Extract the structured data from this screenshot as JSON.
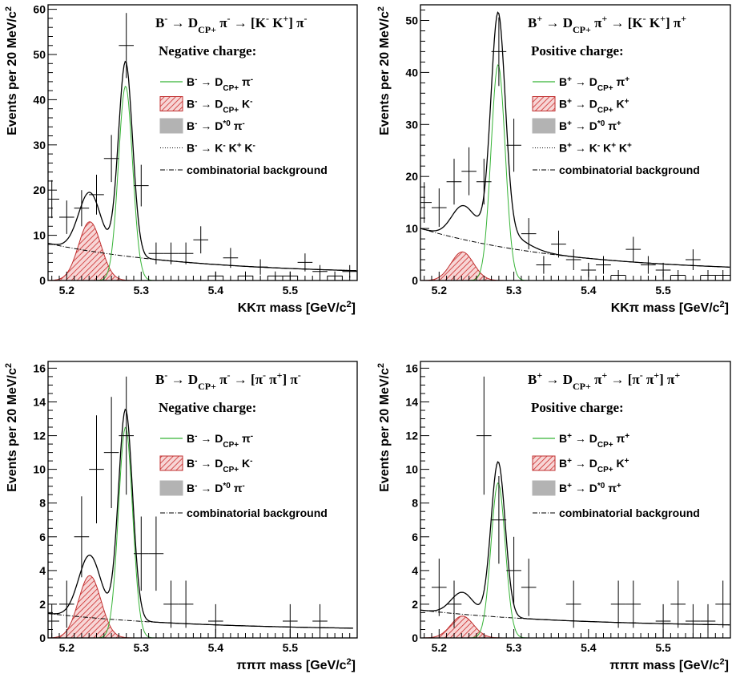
{
  "chart_data": [
    {
      "type": "histogram-fit",
      "title": "B⁻ → D_CP+ π⁻ → [K⁻ K⁺] π⁻",
      "title_parts": {
        "a": "B",
        "a_sup": "-",
        "b": " → D",
        "b_sub": "CP+",
        "c": " π",
        "c_sup": "-",
        "d": " → [K",
        "d_sup": "-",
        "e": " K",
        "e_sup": "+",
        "f": "] π",
        "f_sup": "-"
      },
      "subtitle": "Negative charge:",
      "xlabel": "KKπ mass [GeV/c²]",
      "xlabel_parts": {
        "main": "KKπ mass [GeV/c",
        "sup": "2",
        "end": "]"
      },
      "ylabel": "Events per 20 MeV/c²",
      "ylabel_parts": {
        "main": "Events per 20 MeV/c",
        "sup": "2"
      },
      "xlim": [
        5.175,
        5.59
      ],
      "ylim": [
        0,
        61
      ],
      "xticks": [
        "5.2",
        "5.3",
        "5.4",
        "5.5"
      ],
      "yticks": [
        "0",
        "10",
        "20",
        "30",
        "40",
        "50",
        "60"
      ],
      "legend": [
        {
          "style": "green-line",
          "parts": {
            "a": "B",
            "a_sup": "-",
            "b": " → D",
            "b_sub": "CP+",
            "c": " π",
            "c_sup": "-"
          }
        },
        {
          "style": "red-hatch",
          "parts": {
            "a": "B",
            "a_sup": "-",
            "b": " → D",
            "b_sub": "CP+",
            "c": " K",
            "c_sup": "-"
          }
        },
        {
          "style": "grey-fill",
          "parts": {
            "a": "B",
            "a_sup": "-",
            "b": " → D",
            "b_sup": "*0",
            "c": " π",
            "c_sup": "-"
          }
        },
        {
          "style": "dotted-line",
          "parts": {
            "a": "B",
            "a_sup": "-",
            "b": " → K",
            "b_sup": "-",
            "c": " K",
            "c_sup": "+",
            "d": " K",
            "d_sup": "-"
          }
        },
        {
          "style": "dashdot-line",
          "parts": {
            "a": "combinatorial background"
          }
        }
      ],
      "points": [
        {
          "x": 5.18,
          "y": 18,
          "err": 4.2
        },
        {
          "x": 5.2,
          "y": 14,
          "err": 3.7
        },
        {
          "x": 5.22,
          "y": 16,
          "err": 4
        },
        {
          "x": 5.24,
          "y": 19,
          "err": 4.4
        },
        {
          "x": 5.26,
          "y": 27,
          "err": 5.2
        },
        {
          "x": 5.28,
          "y": 52,
          "err": 7.2
        },
        {
          "x": 5.3,
          "y": 21,
          "err": 4.6
        },
        {
          "x": 5.32,
          "y": 6,
          "err": 2.4
        },
        {
          "x": 5.34,
          "y": 6,
          "err": 2.4
        },
        {
          "x": 5.36,
          "y": 6,
          "err": 2.4
        },
        {
          "x": 5.38,
          "y": 9,
          "err": 3
        },
        {
          "x": 5.4,
          "y": 1,
          "err": 1
        },
        {
          "x": 5.42,
          "y": 5,
          "err": 2.2
        },
        {
          "x": 5.44,
          "y": 1,
          "err": 1
        },
        {
          "x": 5.46,
          "y": 3,
          "err": 1.7
        },
        {
          "x": 5.48,
          "y": 1,
          "err": 1
        },
        {
          "x": 5.5,
          "y": 1,
          "err": 1
        },
        {
          "x": 5.52,
          "y": 4,
          "err": 2
        },
        {
          "x": 5.54,
          "y": 2,
          "err": 1.4
        },
        {
          "x": 5.56,
          "y": 1,
          "err": 1
        },
        {
          "x": 5.58,
          "y": 2,
          "err": 1.4
        }
      ],
      "model": {
        "sig_amp": 43,
        "sig_mean": 5.279,
        "sig_sigma": 0.0095,
        "dk_amp": 13,
        "dk_mean": 5.231,
        "dk_sigma": 0.015,
        "dstar_amp": 0,
        "bg_a": 8.2,
        "bg_b": 1.3,
        "bg_slope": 5,
        "peaking_amp": 0
      }
    },
    {
      "type": "histogram-fit",
      "title": "B⁺ → D_CP+ π⁺ → [K⁻ K⁺] π⁺",
      "title_parts": {
        "a": "B",
        "a_sup": "+",
        "b": " → D",
        "b_sub": "CP+",
        "c": " π",
        "c_sup": "+",
        "d": " → [K",
        "d_sup": "-",
        "e": " K",
        "e_sup": "+",
        "f": "] π",
        "f_sup": "+"
      },
      "subtitle": "Positive charge:",
      "xlabel": "KKπ mass [GeV/c²]",
      "xlabel_parts": {
        "main": "KKπ mass [GeV/c",
        "sup": "2",
        "end": "]"
      },
      "ylabel": "Events per 20 MeV/c²",
      "ylabel_parts": {
        "main": "Events per 20 MeV/c",
        "sup": "2"
      },
      "xlim": [
        5.175,
        5.59
      ],
      "ylim": [
        0,
        53
      ],
      "xticks": [
        "5.2",
        "5.3",
        "5.4",
        "5.5"
      ],
      "yticks": [
        "0",
        "10",
        "20",
        "30",
        "40",
        "50"
      ],
      "legend": [
        {
          "style": "green-line",
          "parts": {
            "a": "B",
            "a_sup": "+",
            "b": " → D",
            "b_sub": "CP+",
            "c": " π",
            "c_sup": "+"
          }
        },
        {
          "style": "red-hatch",
          "parts": {
            "a": "B",
            "a_sup": "+",
            "b": " → D",
            "b_sub": "CP+",
            "c": " K",
            "c_sup": "+"
          }
        },
        {
          "style": "grey-fill",
          "parts": {
            "a": "B",
            "a_sup": "+",
            "b": " → D",
            "b_sup": "*0",
            "c": " π",
            "c_sup": "+"
          }
        },
        {
          "style": "dotted-line",
          "parts": {
            "a": "B",
            "a_sup": "+",
            "b": " → K",
            "b_sup": "-",
            "c": " K",
            "c_sup": "+",
            "d": " K",
            "d_sup": "+"
          }
        },
        {
          "style": "dashdot-line",
          "parts": {
            "a": "combinatorial background"
          }
        }
      ],
      "points": [
        {
          "x": 5.18,
          "y": 15,
          "err": 3.9
        },
        {
          "x": 5.2,
          "y": 14,
          "err": 3.7
        },
        {
          "x": 5.22,
          "y": 19,
          "err": 4.4
        },
        {
          "x": 5.24,
          "y": 21,
          "err": 4.6
        },
        {
          "x": 5.26,
          "y": 19,
          "err": 4.4
        },
        {
          "x": 5.28,
          "y": 44,
          "err": 6.6
        },
        {
          "x": 5.3,
          "y": 26,
          "err": 5.1
        },
        {
          "x": 5.32,
          "y": 9,
          "err": 3
        },
        {
          "x": 5.34,
          "y": 3,
          "err": 1.7
        },
        {
          "x": 5.36,
          "y": 7,
          "err": 2.6
        },
        {
          "x": 5.38,
          "y": 4,
          "err": 2
        },
        {
          "x": 5.4,
          "y": 2,
          "err": 1.4
        },
        {
          "x": 5.42,
          "y": 3,
          "err": 1.7
        },
        {
          "x": 5.44,
          "y": 1,
          "err": 1
        },
        {
          "x": 5.46,
          "y": 6,
          "err": 2.4
        },
        {
          "x": 5.48,
          "y": 3,
          "err": 1.7
        },
        {
          "x": 5.5,
          "y": 2,
          "err": 1.4
        },
        {
          "x": 5.52,
          "y": 1,
          "err": 1
        },
        {
          "x": 5.54,
          "y": 4,
          "err": 2
        },
        {
          "x": 5.56,
          "y": 1,
          "err": 1
        },
        {
          "x": 5.58,
          "y": 1,
          "err": 1
        }
      ],
      "model": {
        "sig_amp": 41.5,
        "sig_mean": 5.279,
        "sig_sigma": 0.0095,
        "dk_amp": 5.5,
        "dk_mean": 5.231,
        "dk_sigma": 0.015,
        "dstar_amp": 0,
        "bg_a": 10,
        "bg_b": 1.5,
        "bg_slope": 5,
        "peaking_amp": 3.5
      }
    },
    {
      "type": "histogram-fit",
      "title": "B⁻ → D_CP+ π⁻ → [π⁻ π⁺] π⁻",
      "title_parts": {
        "a": "B",
        "a_sup": "-",
        "b": " → D",
        "b_sub": "CP+",
        "c": " π",
        "c_sup": "-",
        "d": " → [π",
        "d_sup": "-",
        "e": " π",
        "e_sup": "+",
        "f": "] π",
        "f_sup": "-"
      },
      "subtitle": "Negative charge:",
      "xlabel": "πππ mass [GeV/c²]",
      "xlabel_parts": {
        "main": "πππ mass [GeV/c",
        "sup": "2",
        "end": "]"
      },
      "ylabel": "Events per 20 MeV/c²",
      "ylabel_parts": {
        "main": "Events per 20 MeV/c",
        "sup": "2"
      },
      "xlim": [
        5.175,
        5.59
      ],
      "ylim": [
        0,
        16.4
      ],
      "xticks": [
        "5.2",
        "5.3",
        "5.4",
        "5.5"
      ],
      "yticks": [
        "0",
        "2",
        "4",
        "6",
        "8",
        "10",
        "12",
        "14",
        "16"
      ],
      "legend": [
        {
          "style": "green-line",
          "parts": {
            "a": "B",
            "a_sup": "-",
            "b": " → D",
            "b_sub": "CP+",
            "c": " π",
            "c_sup": "-"
          }
        },
        {
          "style": "red-hatch",
          "parts": {
            "a": "B",
            "a_sup": "-",
            "b": " → D",
            "b_sub": "CP+",
            "c": " K",
            "c_sup": "-"
          }
        },
        {
          "style": "grey-fill",
          "parts": {
            "a": "B",
            "a_sup": "-",
            "b": " → D",
            "b_sup": "*0",
            "c": " π",
            "c_sup": "-"
          }
        },
        {
          "style": "dashdot-line",
          "parts": {
            "a": "combinatorial background"
          }
        }
      ],
      "points": [
        {
          "x": 5.18,
          "y": 1,
          "err": 1
        },
        {
          "x": 5.2,
          "y": 2,
          "err": 1.4
        },
        {
          "x": 5.22,
          "y": 6,
          "err": 2.4
        },
        {
          "x": 5.24,
          "y": 10,
          "err": 3.2
        },
        {
          "x": 5.26,
          "y": 11,
          "err": 3.3
        },
        {
          "x": 5.28,
          "y": 12,
          "err": 3.5
        },
        {
          "x": 5.3,
          "y": 5,
          "err": 2.2
        },
        {
          "x": 5.32,
          "y": 5,
          "err": 2.2
        },
        {
          "x": 5.34,
          "y": 2,
          "err": 1.4
        },
        {
          "x": 5.36,
          "y": 2,
          "err": 1.4
        },
        {
          "x": 5.4,
          "y": 1,
          "err": 1
        },
        {
          "x": 5.5,
          "y": 1,
          "err": 1
        },
        {
          "x": 5.54,
          "y": 1,
          "err": 1
        }
      ],
      "model": {
        "sig_amp": 12.5,
        "sig_mean": 5.279,
        "sig_sigma": 0.0095,
        "dk_amp": 3.7,
        "dk_mean": 5.231,
        "dk_sigma": 0.015,
        "dstar_amp": 0,
        "bg_a": 1.45,
        "bg_b": 0.45,
        "bg_slope": 5,
        "peaking_amp": 0,
        "x_end": 5.585
      }
    },
    {
      "type": "histogram-fit",
      "title": "B⁺ → D_CP+ π⁺ → [π⁻ π⁺] π⁺",
      "title_parts": {
        "a": "B",
        "a_sup": "+",
        "b": " → D",
        "b_sub": "CP+",
        "c": " π",
        "c_sup": "+",
        "d": " → [π",
        "d_sup": "-",
        "e": " π",
        "e_sup": "+",
        "f": "] π",
        "f_sup": "+"
      },
      "subtitle": "Positive charge:",
      "xlabel": "πππ mass [GeV/c²]",
      "xlabel_parts": {
        "main": "πππ mass [GeV/c",
        "sup": "2",
        "end": "]"
      },
      "ylabel": "Events per 20 MeV/c²",
      "ylabel_parts": {
        "main": "Events per 20 MeV/c",
        "sup": "2"
      },
      "xlim": [
        5.175,
        5.59
      ],
      "ylim": [
        0,
        16.4
      ],
      "xticks": [
        "5.2",
        "5.3",
        "5.4",
        "5.5"
      ],
      "yticks": [
        "0",
        "2",
        "4",
        "6",
        "8",
        "10",
        "12",
        "14",
        "16"
      ],
      "legend": [
        {
          "style": "green-line",
          "parts": {
            "a": "B",
            "a_sup": "+",
            "b": " → D",
            "b_sub": "CP+",
            "c": " π",
            "c_sup": "+"
          }
        },
        {
          "style": "red-hatch",
          "parts": {
            "a": "B",
            "a_sup": "+",
            "b": " → D",
            "b_sub": "CP+",
            "c": " K",
            "c_sup": "+"
          }
        },
        {
          "style": "grey-fill",
          "parts": {
            "a": "B",
            "a_sup": "+",
            "b": " → D",
            "b_sup": "*0",
            "c": " π",
            "c_sup": "+"
          }
        },
        {
          "style": "dashdot-line",
          "parts": {
            "a": "combinatorial background"
          }
        }
      ],
      "points": [
        {
          "x": 5.2,
          "y": 3,
          "err": 1.7
        },
        {
          "x": 5.22,
          "y": 2,
          "err": 1.4
        },
        {
          "x": 5.26,
          "y": 12,
          "err": 3.5
        },
        {
          "x": 5.28,
          "y": 7,
          "err": 2.6
        },
        {
          "x": 5.3,
          "y": 4,
          "err": 2
        },
        {
          "x": 5.32,
          "y": 3,
          "err": 1.7
        },
        {
          "x": 5.38,
          "y": 2,
          "err": 1.4
        },
        {
          "x": 5.44,
          "y": 2,
          "err": 1.4
        },
        {
          "x": 5.46,
          "y": 2,
          "err": 1.4
        },
        {
          "x": 5.5,
          "y": 1,
          "err": 1
        },
        {
          "x": 5.52,
          "y": 2,
          "err": 1.4
        },
        {
          "x": 5.54,
          "y": 1,
          "err": 1
        },
        {
          "x": 5.56,
          "y": 1,
          "err": 1
        },
        {
          "x": 5.58,
          "y": 2,
          "err": 1.4
        }
      ],
      "model": {
        "sig_amp": 9.2,
        "sig_mean": 5.279,
        "sig_sigma": 0.0095,
        "dk_amp": 1.3,
        "dk_mean": 5.231,
        "dk_sigma": 0.015,
        "dstar_amp": 0,
        "bg_a": 1.65,
        "bg_b": 0.65,
        "bg_slope": 5,
        "peaking_amp": 0
      }
    }
  ]
}
